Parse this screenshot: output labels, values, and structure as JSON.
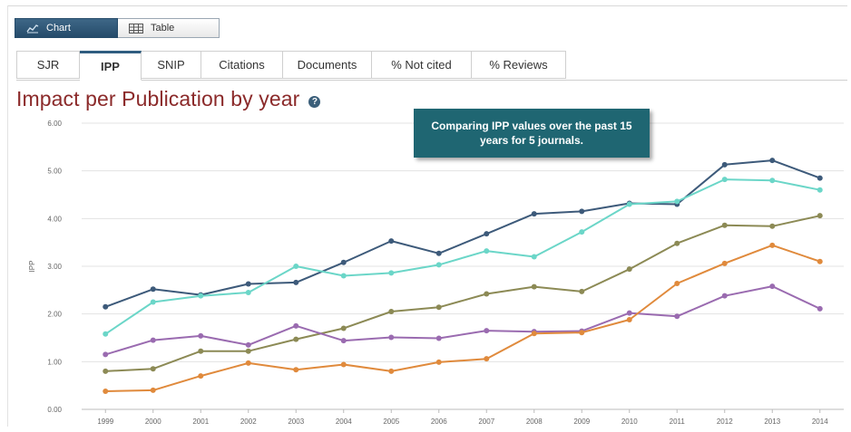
{
  "view_toggle": {
    "chart_label": "Chart",
    "table_label": "Table",
    "active": "Chart"
  },
  "tabs": [
    {
      "label": "SJR"
    },
    {
      "label": "IPP"
    },
    {
      "label": "SNIP"
    },
    {
      "label": "Citations"
    },
    {
      "label": "Documents"
    },
    {
      "label": "% Not cited"
    },
    {
      "label": "% Reviews"
    }
  ],
  "active_tab": "IPP",
  "page_title": "Impact per Publication by year",
  "callout": "Comparing IPP values over the past 15 years for 5 journals.",
  "colors": {
    "toggle_active": "#2b5573",
    "title": "#8b2a2a",
    "callout_bg": "#1f6672"
  },
  "chart_data": {
    "type": "line",
    "title": "Impact per Publication by year",
    "xlabel": "",
    "ylabel": "IPP",
    "categories": [
      "1999",
      "2000",
      "2001",
      "2002",
      "2003",
      "2004",
      "2005",
      "2006",
      "2007",
      "2008",
      "2009",
      "2010",
      "2011",
      "2012",
      "2013",
      "2014"
    ],
    "ylim": [
      0,
      6
    ],
    "yticks": [
      "0.00",
      "1.00",
      "2.00",
      "3.00",
      "4.00",
      "5.00",
      "6.00"
    ],
    "grid": true,
    "legend": "none",
    "series": [
      {
        "color": "#3d5a7a",
        "values": [
          2.15,
          2.52,
          2.4,
          2.63,
          2.66,
          3.08,
          3.53,
          3.27,
          3.68,
          4.1,
          4.15,
          4.32,
          4.3,
          5.13,
          5.22,
          4.85
        ]
      },
      {
        "color": "#6bd6c8",
        "values": [
          1.58,
          2.25,
          2.38,
          2.45,
          3.0,
          2.8,
          2.86,
          3.03,
          3.32,
          3.2,
          3.72,
          4.3,
          4.36,
          4.82,
          4.8,
          4.6
        ]
      },
      {
        "color": "#8c8a55",
        "values": [
          0.8,
          0.85,
          1.22,
          1.22,
          1.47,
          1.7,
          2.05,
          2.14,
          2.42,
          2.57,
          2.47,
          2.94,
          3.48,
          3.86,
          3.84,
          4.06
        ]
      },
      {
        "color": "#9a6bb0",
        "values": [
          1.15,
          1.45,
          1.54,
          1.35,
          1.75,
          1.44,
          1.51,
          1.49,
          1.65,
          1.63,
          1.64,
          2.02,
          1.95,
          2.38,
          2.58,
          2.11
        ]
      },
      {
        "color": "#e08a3c",
        "values": [
          0.38,
          0.4,
          0.7,
          0.97,
          0.83,
          0.94,
          0.8,
          0.99,
          1.06,
          1.59,
          1.61,
          1.88,
          2.64,
          3.06,
          3.44,
          3.1
        ]
      }
    ]
  }
}
